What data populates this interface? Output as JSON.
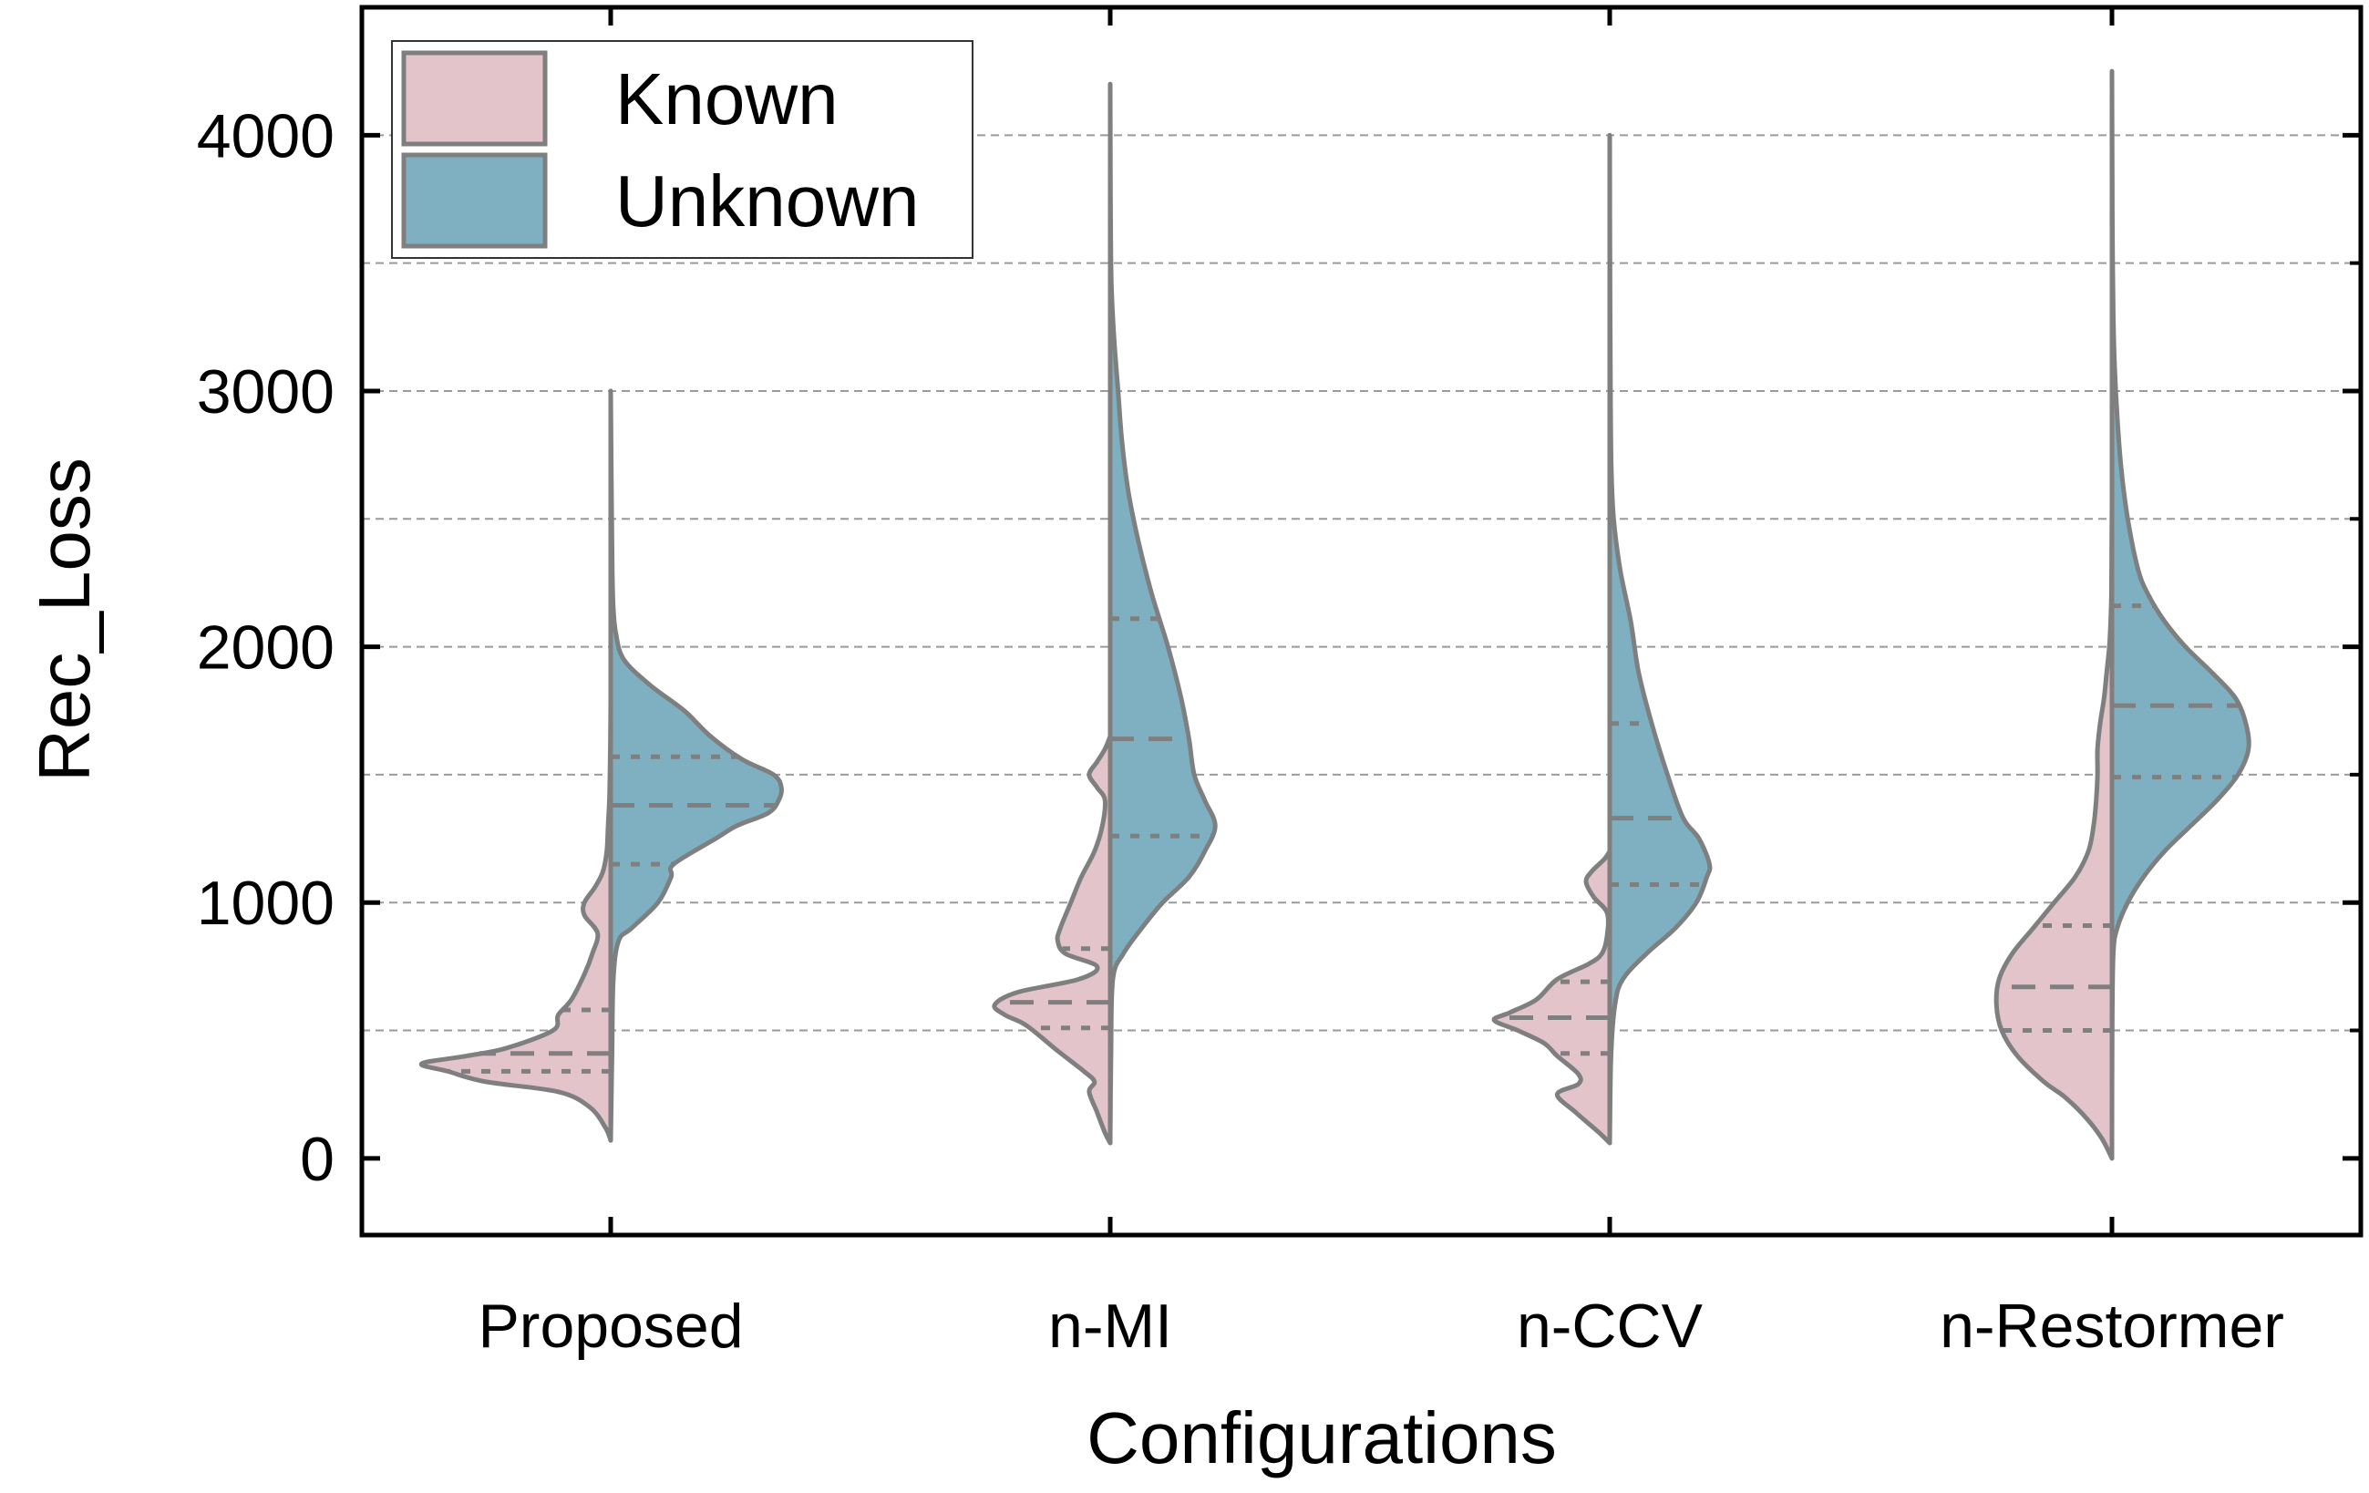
{
  "chart_data": {
    "type": "split-violin",
    "title": "",
    "xlabel": "Configurations",
    "ylabel": "Rec_Loss",
    "ylim": [
      -300,
      4500
    ],
    "yticks": [
      0,
      1000,
      2000,
      3000,
      4000
    ],
    "y_gridlines": [
      500,
      1000,
      1500,
      2000,
      2500,
      3000,
      3500,
      4000
    ],
    "categories": [
      "Proposed",
      "n-MI",
      "n-CCV",
      "n-Restormer"
    ],
    "legend": {
      "position": "top-left",
      "entries": [
        "Known",
        "Unknown"
      ]
    },
    "colors": {
      "Known": "#e3c4cb",
      "Unknown": "#7fb0c1",
      "outline": "#7f7f7f",
      "grid": "#9a9a9a"
    },
    "series": [
      {
        "name": "Known",
        "side": "left",
        "violins": [
          {
            "category": "Proposed",
            "quartiles": [
              340,
              410,
              580
            ],
            "profile": [
              [
                70,
                0
              ],
              [
                120,
                0.02
              ],
              [
                200,
                0.08
              ],
              [
                260,
                0.2
              ],
              [
                300,
                0.48
              ],
              [
                340,
                0.62
              ],
              [
                370,
                0.72
              ],
              [
                400,
                0.55
              ],
              [
                430,
                0.4
              ],
              [
                500,
                0.22
              ],
              [
                560,
                0.2
              ],
              [
                620,
                0.15
              ],
              [
                720,
                0.1
              ],
              [
                800,
                0.07
              ],
              [
                880,
                0.05
              ],
              [
                950,
                0.1
              ],
              [
                1000,
                0.1
              ],
              [
                1060,
                0.06
              ],
              [
                1120,
                0.03
              ],
              [
                1200,
                0.015
              ],
              [
                1300,
                0.01
              ],
              [
                1400,
                0.005
              ],
              [
                1500,
                0.003
              ],
              [
                1650,
                0.001
              ],
              [
                1800,
                0
              ]
            ]
          },
          {
            "category": "n-MI",
            "quartiles": [
              510,
              610,
              820
            ],
            "profile": [
              [
                60,
                0
              ],
              [
                100,
                0.02
              ],
              [
                180,
                0.05
              ],
              [
                260,
                0.08
              ],
              [
                300,
                0.06
              ],
              [
                340,
                0.1
              ],
              [
                420,
                0.2
              ],
              [
                520,
                0.32
              ],
              [
                560,
                0.4
              ],
              [
                600,
                0.44
              ],
              [
                650,
                0.35
              ],
              [
                700,
                0.12
              ],
              [
                750,
                0.05
              ],
              [
                800,
                0.17
              ],
              [
                850,
                0.2
              ],
              [
                900,
                0.19
              ],
              [
                1000,
                0.15
              ],
              [
                1100,
                0.11
              ],
              [
                1200,
                0.06
              ],
              [
                1300,
                0.03
              ],
              [
                1400,
                0.02
              ],
              [
                1450,
                0.05
              ],
              [
                1500,
                0.08
              ],
              [
                1550,
                0.05
              ],
              [
                1600,
                0.02
              ],
              [
                1650,
                0
              ]
            ]
          },
          {
            "category": "n-CCV",
            "quartiles": [
              410,
              550,
              690
            ],
            "profile": [
              [
                60,
                0
              ],
              [
                100,
                0.04
              ],
              [
                180,
                0.13
              ],
              [
                250,
                0.2
              ],
              [
                290,
                0.12
              ],
              [
                330,
                0.12
              ],
              [
                400,
                0.2
              ],
              [
                450,
                0.25
              ],
              [
                500,
                0.35
              ],
              [
                540,
                0.44
              ],
              [
                570,
                0.38
              ],
              [
                620,
                0.28
              ],
              [
                700,
                0.2
              ],
              [
                760,
                0.08
              ],
              [
                800,
                0.03
              ],
              [
                870,
                0.01
              ],
              [
                960,
                0.01
              ],
              [
                1020,
                0.06
              ],
              [
                1080,
                0.09
              ],
              [
                1120,
                0.07
              ],
              [
                1170,
                0.02
              ],
              [
                1200,
                0
              ]
            ]
          },
          {
            "category": "n-Restormer",
            "quartiles": [
              500,
              670,
              910
            ],
            "profile": [
              [
                0,
                0
              ],
              [
                80,
                0.04
              ],
              [
                160,
                0.1
              ],
              [
                240,
                0.18
              ],
              [
                300,
                0.26
              ],
              [
                400,
                0.36
              ],
              [
                500,
                0.42
              ],
              [
                600,
                0.44
              ],
              [
                700,
                0.43
              ],
              [
                800,
                0.38
              ],
              [
                900,
                0.3
              ],
              [
                1000,
                0.22
              ],
              [
                1100,
                0.14
              ],
              [
                1200,
                0.09
              ],
              [
                1300,
                0.07
              ],
              [
                1400,
                0.06
              ],
              [
                1500,
                0.055
              ],
              [
                1600,
                0.055
              ],
              [
                1700,
                0.045
              ],
              [
                1800,
                0.03
              ],
              [
                1900,
                0.02
              ],
              [
                2000,
                0.01
              ],
              [
                2100,
                0.005
              ],
              [
                2200,
                0.002
              ],
              [
                2400,
                0.001
              ],
              [
                2550,
                0
              ]
            ]
          }
        ]
      },
      {
        "name": "Unknown",
        "side": "right",
        "violins": [
          {
            "category": "Proposed",
            "quartiles": [
              1150,
              1380,
              1570
            ],
            "profile": [
              [
                70,
                0
              ],
              [
                400,
                0.005
              ],
              [
                700,
                0.01
              ],
              [
                850,
                0.03
              ],
              [
                900,
                0.08
              ],
              [
                1000,
                0.18
              ],
              [
                1100,
                0.23
              ],
              [
                1150,
                0.24
              ],
              [
                1250,
                0.4
              ],
              [
                1300,
                0.48
              ],
              [
                1350,
                0.6
              ],
              [
                1400,
                0.64
              ],
              [
                1450,
                0.65
              ],
              [
                1500,
                0.62
              ],
              [
                1560,
                0.5
              ],
              [
                1650,
                0.38
              ],
              [
                1750,
                0.28
              ],
              [
                1850,
                0.15
              ],
              [
                1950,
                0.05
              ],
              [
                2050,
                0.02
              ],
              [
                2150,
                0.01
              ],
              [
                2300,
                0.006
              ],
              [
                2600,
                0.003
              ],
              [
                3000,
                0
              ]
            ]
          },
          {
            "category": "n-MI",
            "quartiles": [
              1260,
              1640,
              2110
            ],
            "profile": [
              [
                60,
                0
              ],
              [
                400,
                0.003
              ],
              [
                700,
                0.01
              ],
              [
                800,
                0.05
              ],
              [
                900,
                0.12
              ],
              [
                1000,
                0.2
              ],
              [
                1100,
                0.3
              ],
              [
                1200,
                0.36
              ],
              [
                1300,
                0.4
              ],
              [
                1400,
                0.36
              ],
              [
                1500,
                0.32
              ],
              [
                1640,
                0.3
              ],
              [
                1800,
                0.27
              ],
              [
                2000,
                0.22
              ],
              [
                2200,
                0.16
              ],
              [
                2400,
                0.11
              ],
              [
                2600,
                0.07
              ],
              [
                2800,
                0.045
              ],
              [
                3000,
                0.03
              ],
              [
                3200,
                0.015
              ],
              [
                3400,
                0.005
              ],
              [
                3600,
                0.002
              ],
              [
                3800,
                0.001
              ],
              [
                4000,
                0.0005
              ],
              [
                4200,
                0
              ]
            ]
          },
          {
            "category": "n-CCV",
            "quartiles": [
              1070,
              1330,
              1700
            ],
            "profile": [
              [
                60,
                0
              ],
              [
                400,
                0.005
              ],
              [
                600,
                0.02
              ],
              [
                700,
                0.05
              ],
              [
                800,
                0.14
              ],
              [
                900,
                0.25
              ],
              [
                1000,
                0.33
              ],
              [
                1100,
                0.37
              ],
              [
                1150,
                0.38
              ],
              [
                1250,
                0.34
              ],
              [
                1330,
                0.28
              ],
              [
                1500,
                0.22
              ],
              [
                1700,
                0.16
              ],
              [
                1900,
                0.11
              ],
              [
                2100,
                0.08
              ],
              [
                2300,
                0.04
              ],
              [
                2500,
                0.015
              ],
              [
                2700,
                0.006
              ],
              [
                3000,
                0.003
              ],
              [
                3500,
                0.001
              ],
              [
                4000,
                0
              ]
            ]
          },
          {
            "category": "n-Restormer",
            "quartiles": [
              1490,
              1770,
              2160
            ],
            "profile": [
              [
                0,
                0
              ],
              [
                500,
                0.001
              ],
              [
                800,
                0.005
              ],
              [
                900,
                0.02
              ],
              [
                1000,
                0.06
              ],
              [
                1100,
                0.12
              ],
              [
                1200,
                0.2
              ],
              [
                1300,
                0.3
              ],
              [
                1400,
                0.4
              ],
              [
                1500,
                0.48
              ],
              [
                1600,
                0.52
              ],
              [
                1700,
                0.51
              ],
              [
                1800,
                0.47
              ],
              [
                1900,
                0.38
              ],
              [
                2000,
                0.28
              ],
              [
                2100,
                0.2
              ],
              [
                2200,
                0.14
              ],
              [
                2300,
                0.1
              ],
              [
                2500,
                0.06
              ],
              [
                2700,
                0.035
              ],
              [
                2900,
                0.02
              ],
              [
                3100,
                0.01
              ],
              [
                3300,
                0.005
              ],
              [
                3600,
                0.002
              ],
              [
                3900,
                0.001
              ],
              [
                4250,
                0
              ]
            ]
          }
        ]
      }
    ]
  }
}
